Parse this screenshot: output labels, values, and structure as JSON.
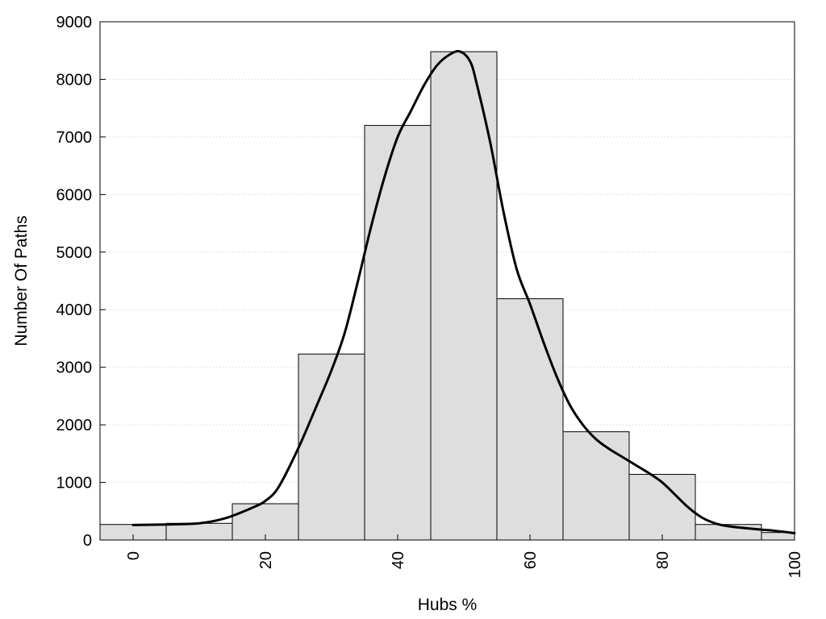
{
  "chart_data": {
    "type": "bar",
    "xlabel": "Hubs %",
    "ylabel": "Number Of Paths",
    "xlim": [
      -5,
      100
    ],
    "ylim": [
      0,
      9000
    ],
    "xticks": [
      0,
      20,
      40,
      60,
      80,
      100
    ],
    "yticks": [
      0,
      1000,
      2000,
      3000,
      4000,
      5000,
      6000,
      7000,
      8000,
      9000
    ],
    "grid": "horizontal dotted",
    "bin_width": 10,
    "bins": [
      {
        "center": 0,
        "value": 270
      },
      {
        "center": 10,
        "value": 290
      },
      {
        "center": 20,
        "value": 630
      },
      {
        "center": 30,
        "value": 3230
      },
      {
        "center": 40,
        "value": 7200
      },
      {
        "center": 50,
        "value": 8480
      },
      {
        "center": 60,
        "value": 4190
      },
      {
        "center": 70,
        "value": 1880
      },
      {
        "center": 80,
        "value": 1140
      },
      {
        "center": 90,
        "value": 270
      },
      {
        "center": 97.5,
        "value": 130,
        "width": 5
      }
    ],
    "density_curve": [
      [
        0,
        260
      ],
      [
        5,
        270
      ],
      [
        10,
        290
      ],
      [
        14,
        380
      ],
      [
        18,
        560
      ],
      [
        20,
        680
      ],
      [
        22,
        920
      ],
      [
        25,
        1600
      ],
      [
        28,
        2400
      ],
      [
        30,
        2950
      ],
      [
        32,
        3600
      ],
      [
        34,
        4500
      ],
      [
        36,
        5450
      ],
      [
        38,
        6300
      ],
      [
        40,
        7000
      ],
      [
        42,
        7450
      ],
      [
        44,
        7900
      ],
      [
        46,
        8250
      ],
      [
        48,
        8440
      ],
      [
        49.5,
        8480
      ],
      [
        51,
        8300
      ],
      [
        52,
        7900
      ],
      [
        54,
        6900
      ],
      [
        56,
        5700
      ],
      [
        58,
        4700
      ],
      [
        60,
        4100
      ],
      [
        62,
        3450
      ],
      [
        64,
        2850
      ],
      [
        66,
        2350
      ],
      [
        68,
        2000
      ],
      [
        70,
        1750
      ],
      [
        72,
        1580
      ],
      [
        74,
        1440
      ],
      [
        76,
        1300
      ],
      [
        78,
        1160
      ],
      [
        80,
        1000
      ],
      [
        82,
        780
      ],
      [
        84,
        560
      ],
      [
        86,
        390
      ],
      [
        88,
        290
      ],
      [
        90,
        240
      ],
      [
        94,
        190
      ],
      [
        97,
        160
      ],
      [
        100,
        120
      ]
    ]
  }
}
